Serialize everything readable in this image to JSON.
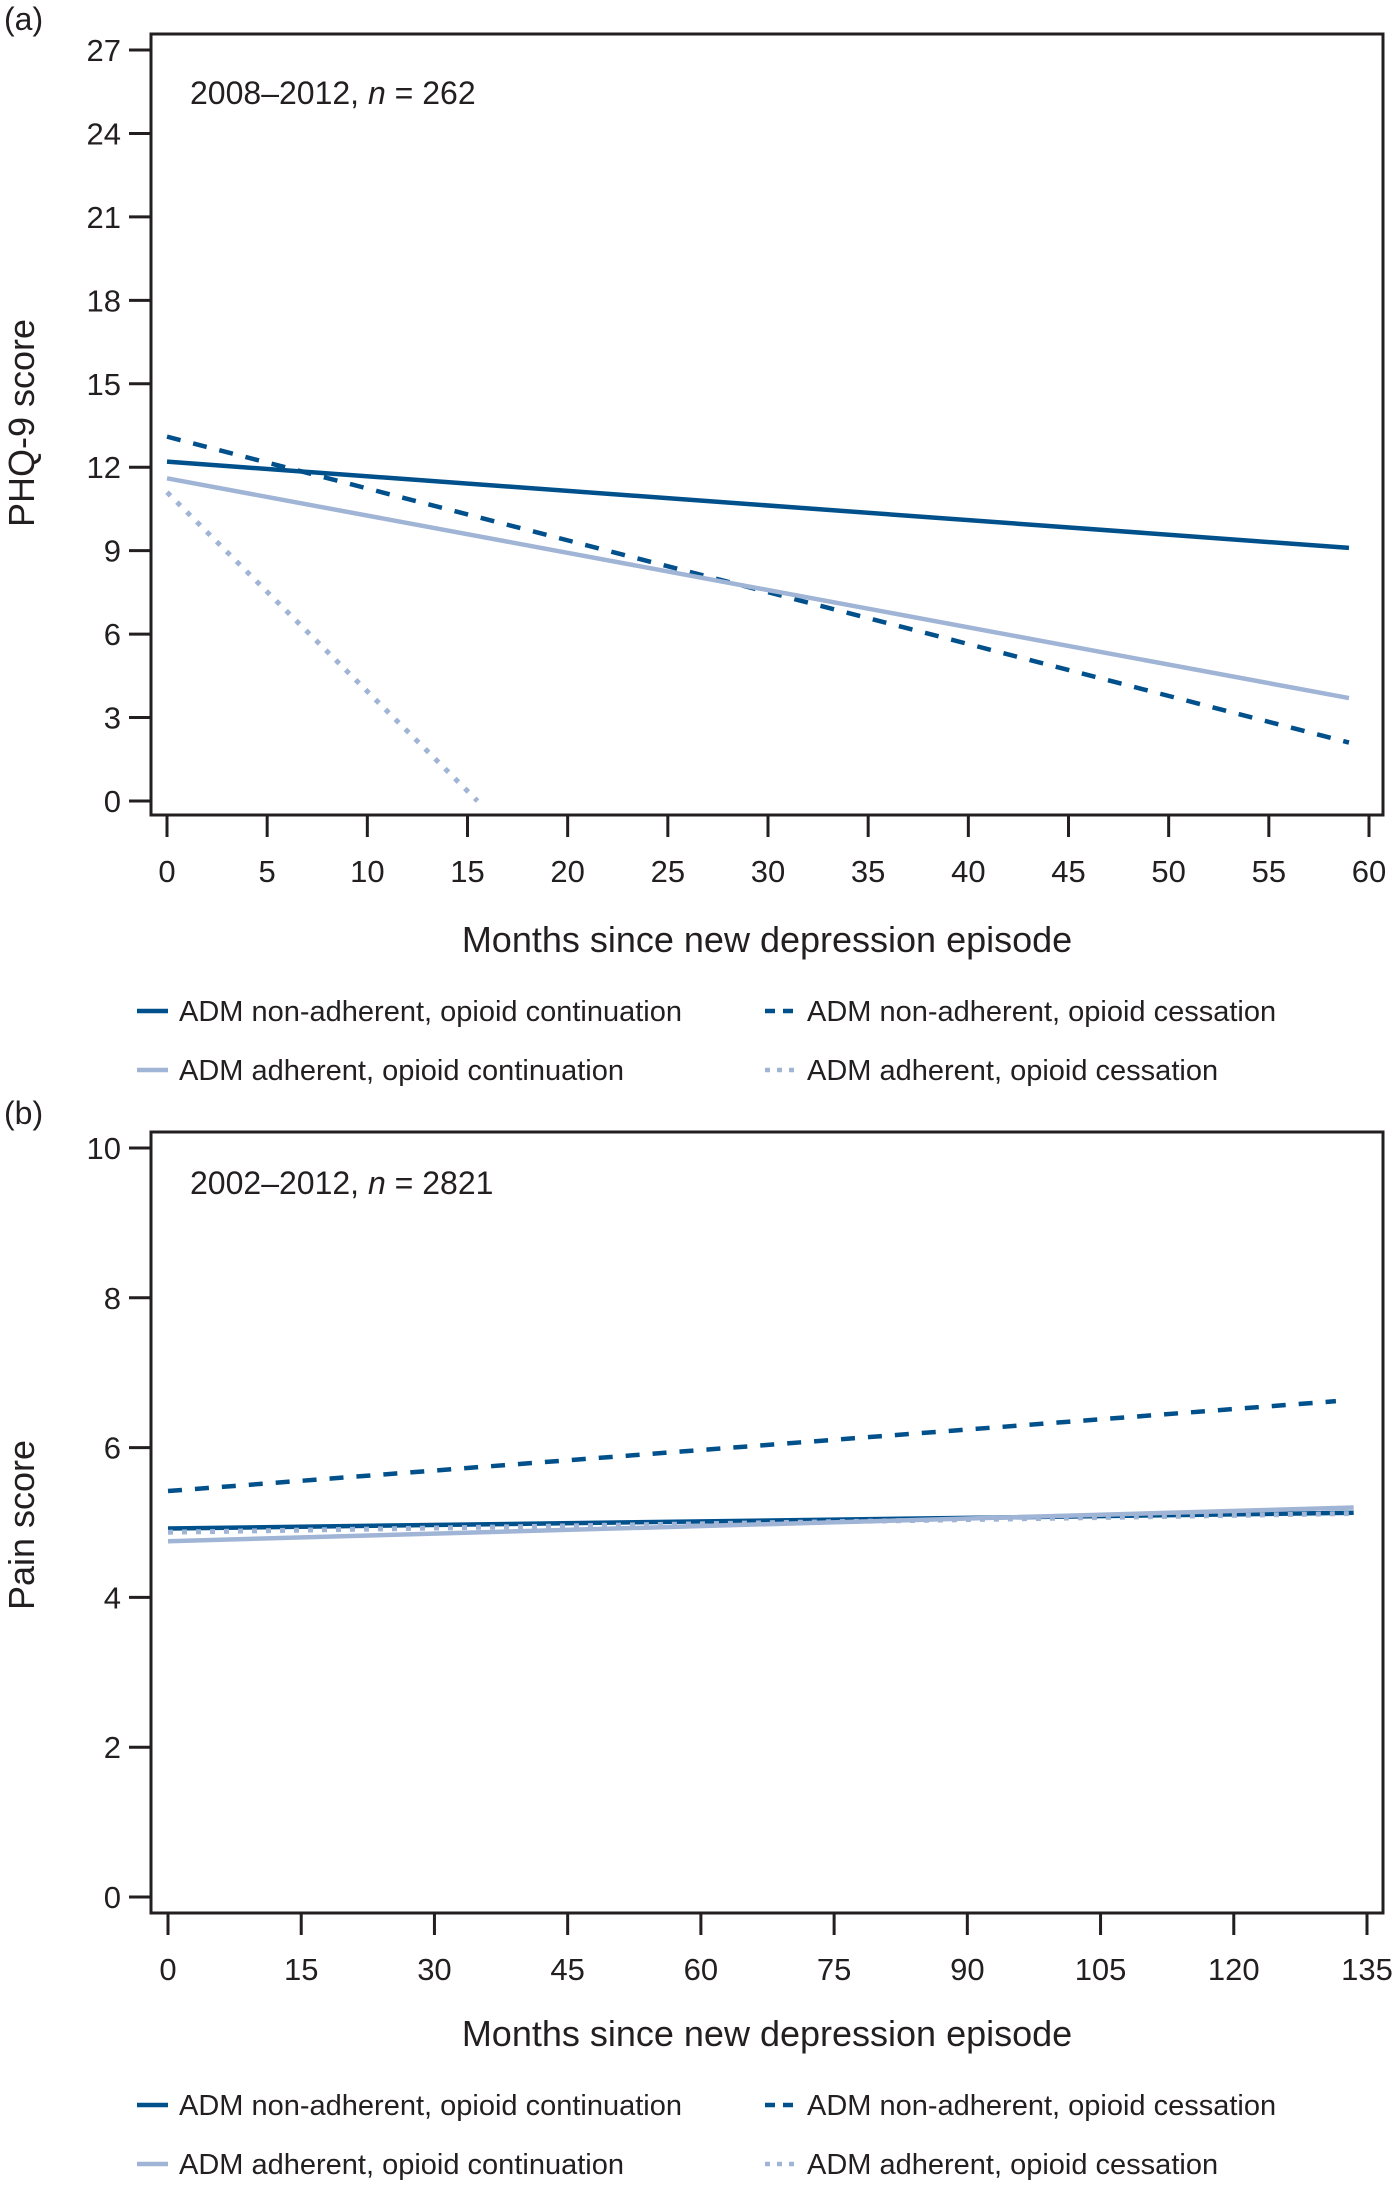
{
  "figure": {
    "colors": {
      "dark": "#00508c",
      "light": "#a0b4d6",
      "axis": "#231f20"
    }
  },
  "chart_data": [
    {
      "type": "line",
      "panel_label": "(a)",
      "annotation": {
        "text_prefix": "2008–2012, ",
        "italic": "n",
        "text_suffix": " = 262"
      },
      "xlabel": "Months since new depression episode",
      "ylabel": "PHQ-9 score",
      "xlim": [
        0,
        60
      ],
      "ylim": [
        0,
        27
      ],
      "xticks": [
        0,
        5,
        10,
        15,
        20,
        25,
        30,
        35,
        40,
        45,
        50,
        55,
        60
      ],
      "yticks": [
        0,
        3,
        6,
        9,
        12,
        15,
        18,
        21,
        24,
        27
      ],
      "grid": false,
      "legend_position": "below",
      "series": [
        {
          "name": "ADM non-adherent, opioid continuation",
          "color": "dark",
          "style": "solid",
          "x": [
            0,
            59
          ],
          "y": [
            12.2,
            9.1
          ]
        },
        {
          "name": "ADM non-adherent, opioid cessation",
          "color": "dark",
          "style": "dashed",
          "x": [
            0,
            59
          ],
          "y": [
            13.1,
            2.1
          ]
        },
        {
          "name": "ADM adherent, opioid continuation",
          "color": "light",
          "style": "solid",
          "x": [
            0,
            59
          ],
          "y": [
            11.6,
            3.7
          ]
        },
        {
          "name": "ADM adherent, opioid cessation",
          "color": "light",
          "style": "dotted",
          "x": [
            0,
            15.5
          ],
          "y": [
            11.1,
            0.0
          ]
        }
      ]
    },
    {
      "type": "line",
      "panel_label": "(b)",
      "annotation": {
        "text_prefix": "2002–2012, ",
        "italic": "n",
        "text_suffix": " = 2821"
      },
      "xlabel": "Months since new depression episode",
      "ylabel": "Pain score",
      "xlim": [
        0,
        135
      ],
      "ylim": [
        0,
        10
      ],
      "xticks": [
        0,
        15,
        30,
        45,
        60,
        75,
        90,
        105,
        120,
        135
      ],
      "yticks": [
        0,
        2,
        4,
        6,
        8,
        10
      ],
      "grid": false,
      "legend_position": "below",
      "series": [
        {
          "name": "ADM non-adherent, opioid continuation",
          "color": "dark",
          "style": "solid",
          "x": [
            0,
            133.5
          ],
          "y": [
            4.92,
            5.13
          ]
        },
        {
          "name": "ADM non-adherent, opioid cessation",
          "color": "dark",
          "style": "dashed",
          "x": [
            0,
            131.5
          ],
          "y": [
            5.42,
            6.62
          ]
        },
        {
          "name": "ADM adherent, opioid continuation",
          "color": "light",
          "style": "solid",
          "x": [
            0,
            133.5
          ],
          "y": [
            4.75,
            5.2
          ]
        },
        {
          "name": "ADM adherent, opioid cessation",
          "color": "light",
          "style": "dotted",
          "x": [
            0,
            133.5
          ],
          "y": [
            4.87,
            5.12
          ]
        }
      ]
    }
  ]
}
